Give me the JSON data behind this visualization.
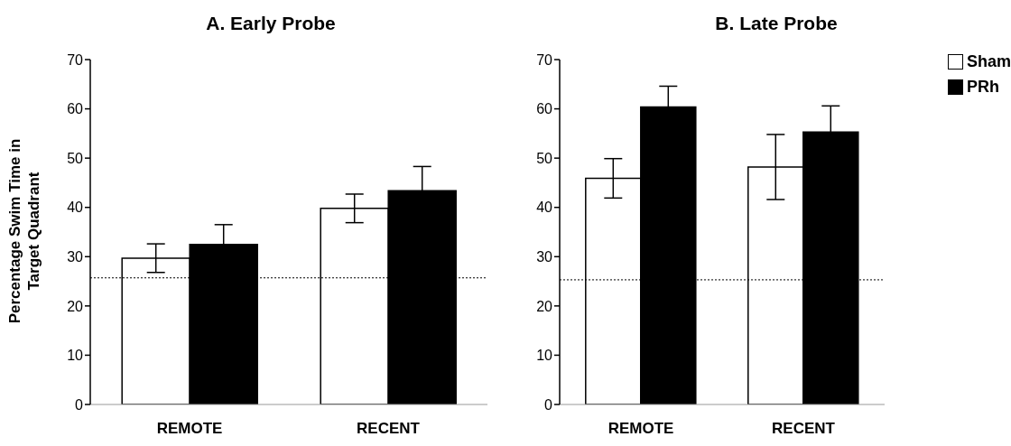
{
  "chart_data": [
    {
      "type": "bar",
      "title": "A. Early Probe",
      "ylabel": "Percentage Swim Time in Target Quadrant",
      "categories": [
        "REMOTE",
        "RECENT"
      ],
      "series": [
        {
          "color": "#ffffff",
          "values": [
            29.7,
            39.8
          ],
          "errors": [
            2.9,
            2.9
          ]
        },
        {
          "color": "#000000",
          "values": [
            32.5,
            43.4
          ],
          "errors": [
            4.0,
            4.9
          ]
        }
      ],
      "ylim": [
        0,
        70
      ],
      "yticks": [
        0,
        10,
        20,
        30,
        40,
        50,
        60,
        70
      ],
      "grid": false,
      "legend": false,
      "ref_lines": [
        {
          "axis": "y",
          "value": 25.7,
          "line_style": "dotted"
        }
      ]
    },
    {
      "type": "bar",
      "title": "B. Late Probe",
      "categories": [
        "REMOTE",
        "RECENT"
      ],
      "series": [
        {
          "name": "Sham",
          "color": "#ffffff",
          "values": [
            45.9,
            48.2
          ],
          "errors": [
            4.0,
            6.6
          ]
        },
        {
          "name": "PRh",
          "color": "#000000",
          "values": [
            60.4,
            55.3
          ],
          "errors": [
            4.2,
            5.3
          ]
        }
      ],
      "ylim": [
        0,
        70
      ],
      "yticks": [
        0,
        10,
        20,
        30,
        40,
        50,
        60,
        70
      ],
      "grid": false,
      "legend": "top right",
      "ref_lines": [
        {
          "axis": "y",
          "value": 25.3,
          "line_style": "dotted"
        }
      ]
    }
  ]
}
